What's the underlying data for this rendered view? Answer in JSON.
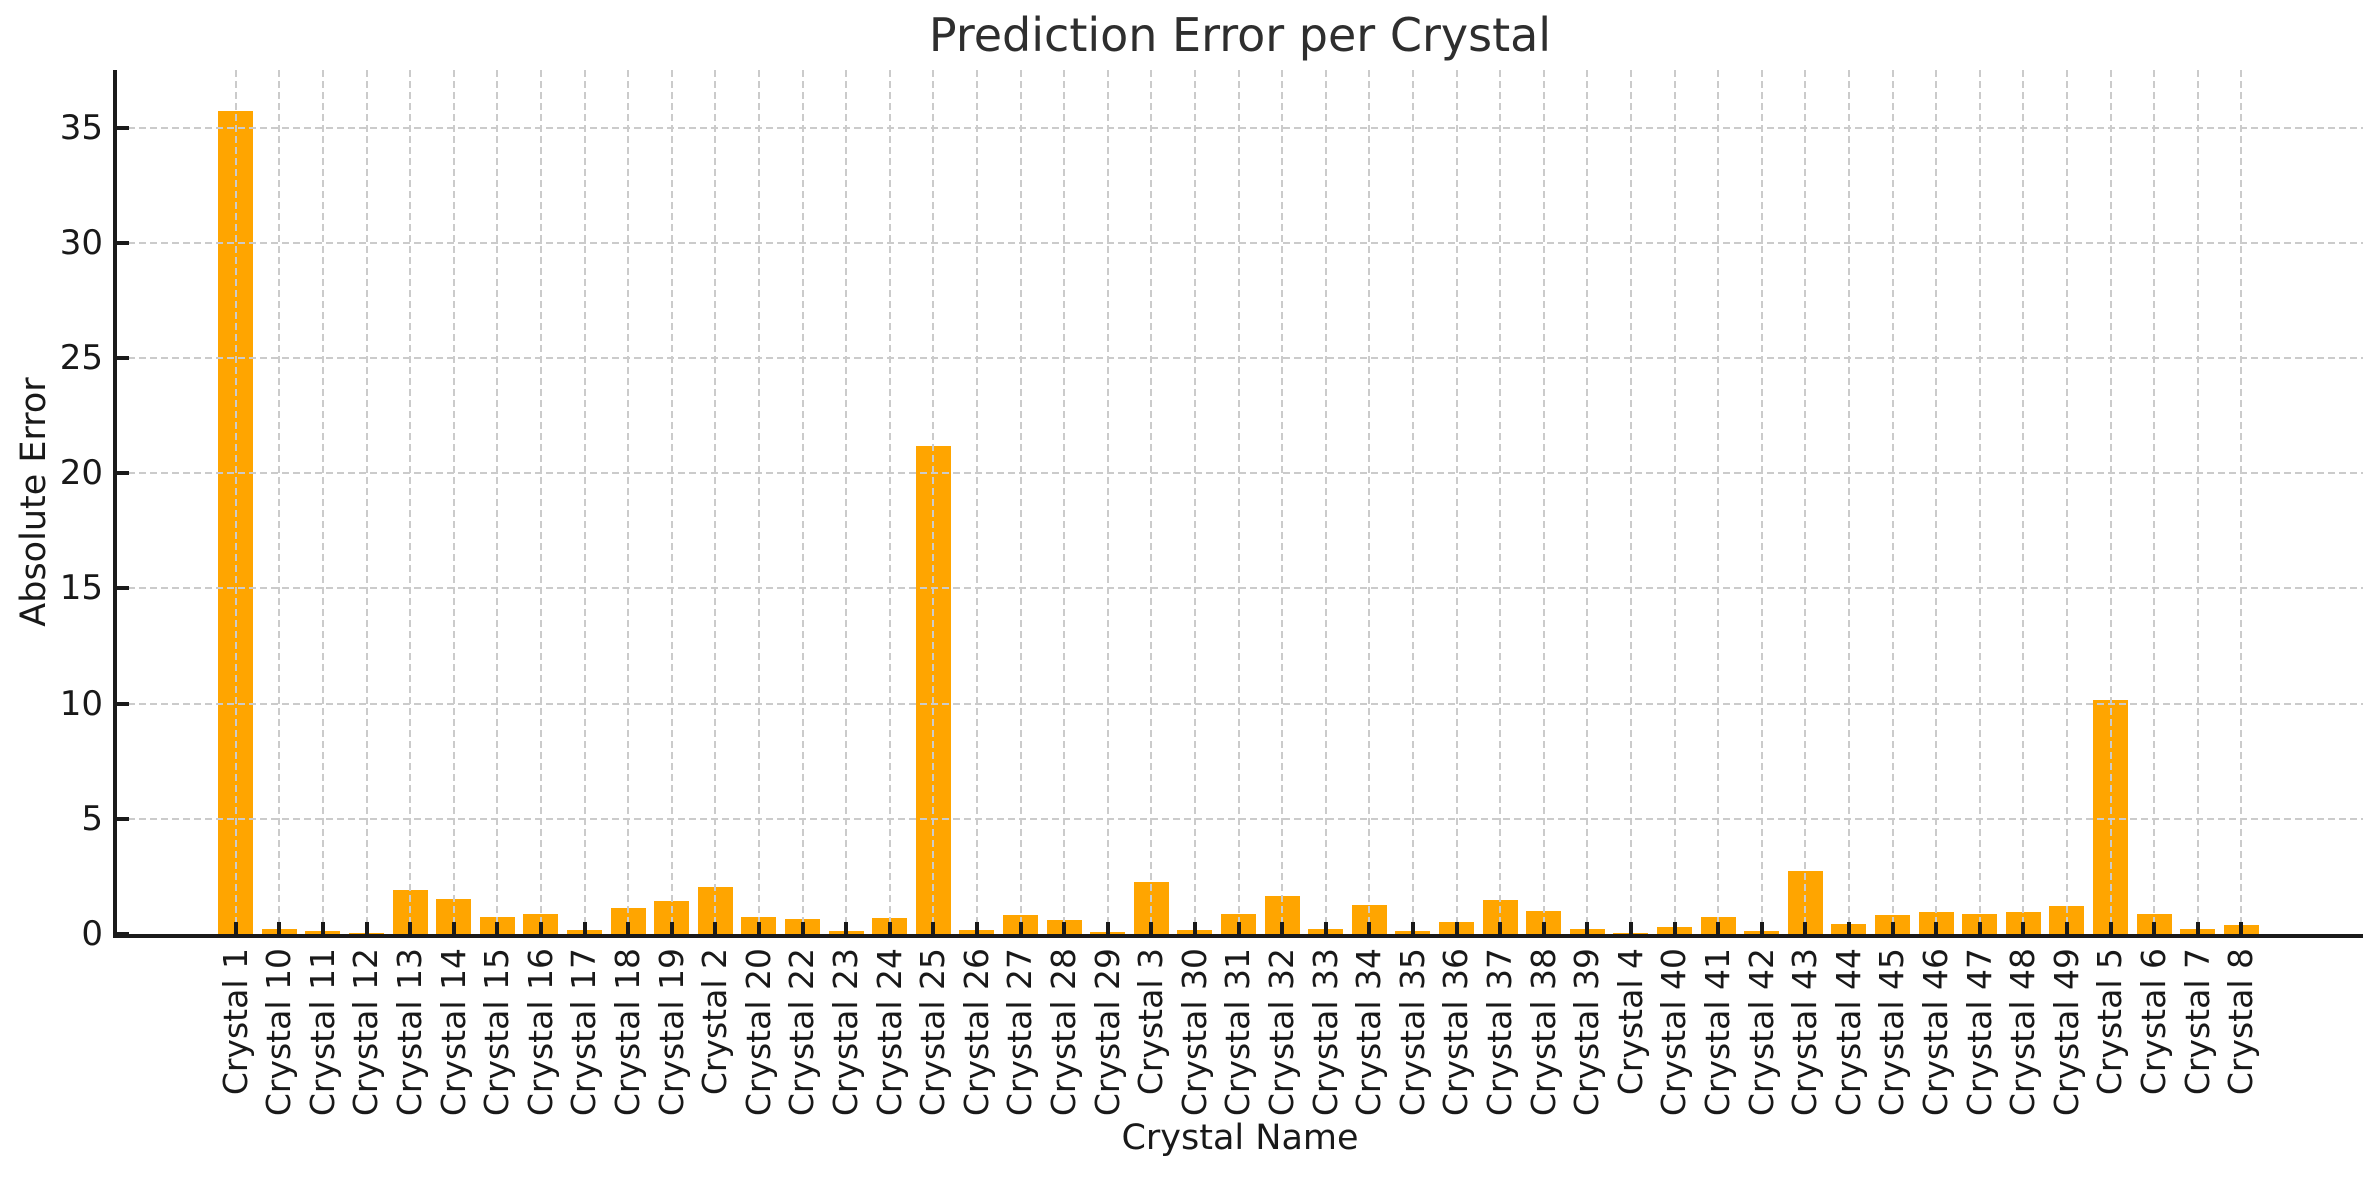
{
  "chart_data": {
    "type": "bar",
    "title": "Prediction Error per Crystal",
    "xlabel": "Crystal Name",
    "ylabel": "Absolute Error",
    "categories": [
      "Crystal 1",
      "Crystal 10",
      "Crystal 11",
      "Crystal 12",
      "Crystal 13",
      "Crystal 14",
      "Crystal 15",
      "Crystal 16",
      "Crystal 17",
      "Crystal 18",
      "Crystal 19",
      "Crystal 2",
      "Crystal 20",
      "Crystal 22",
      "Crystal 23",
      "Crystal 24",
      "Crystal 25",
      "Crystal 26",
      "Crystal 27",
      "Crystal 28",
      "Crystal 29",
      "Crystal 3",
      "Crystal 30",
      "Crystal 31",
      "Crystal 32",
      "Crystal 33",
      "Crystal 34",
      "Crystal 35",
      "Crystal 36",
      "Crystal 37",
      "Crystal 38",
      "Crystal 39",
      "Crystal 4",
      "Crystal 40",
      "Crystal 41",
      "Crystal 42",
      "Crystal 43",
      "Crystal 44",
      "Crystal 45",
      "Crystal 46",
      "Crystal 47",
      "Crystal 48",
      "Crystal 49",
      "Crystal 5",
      "Crystal 6",
      "Crystal 7",
      "Crystal 8"
    ],
    "values": [
      35.7,
      0.2,
      0.12,
      0.05,
      1.9,
      1.5,
      0.72,
      0.85,
      0.17,
      1.13,
      1.45,
      2.03,
      0.72,
      0.67,
      0.13,
      0.68,
      21.2,
      0.17,
      0.81,
      0.62,
      0.1,
      2.24,
      0.17,
      0.85,
      1.63,
      0.22,
      1.24,
      0.11,
      0.5,
      1.46,
      0.98,
      0.22,
      0.03,
      0.29,
      0.72,
      0.14,
      2.75,
      0.43,
      0.81,
      0.94,
      0.87,
      0.96,
      1.2,
      10.17,
      0.85,
      0.22,
      0.37
    ],
    "yticks": [
      0,
      5,
      10,
      15,
      20,
      25,
      30,
      35
    ],
    "ylim": [
      0,
      37.5
    ],
    "bar_color": "#FFA500",
    "grid": "dashed",
    "grid_color": "#cbcbcb",
    "legend": "none"
  }
}
